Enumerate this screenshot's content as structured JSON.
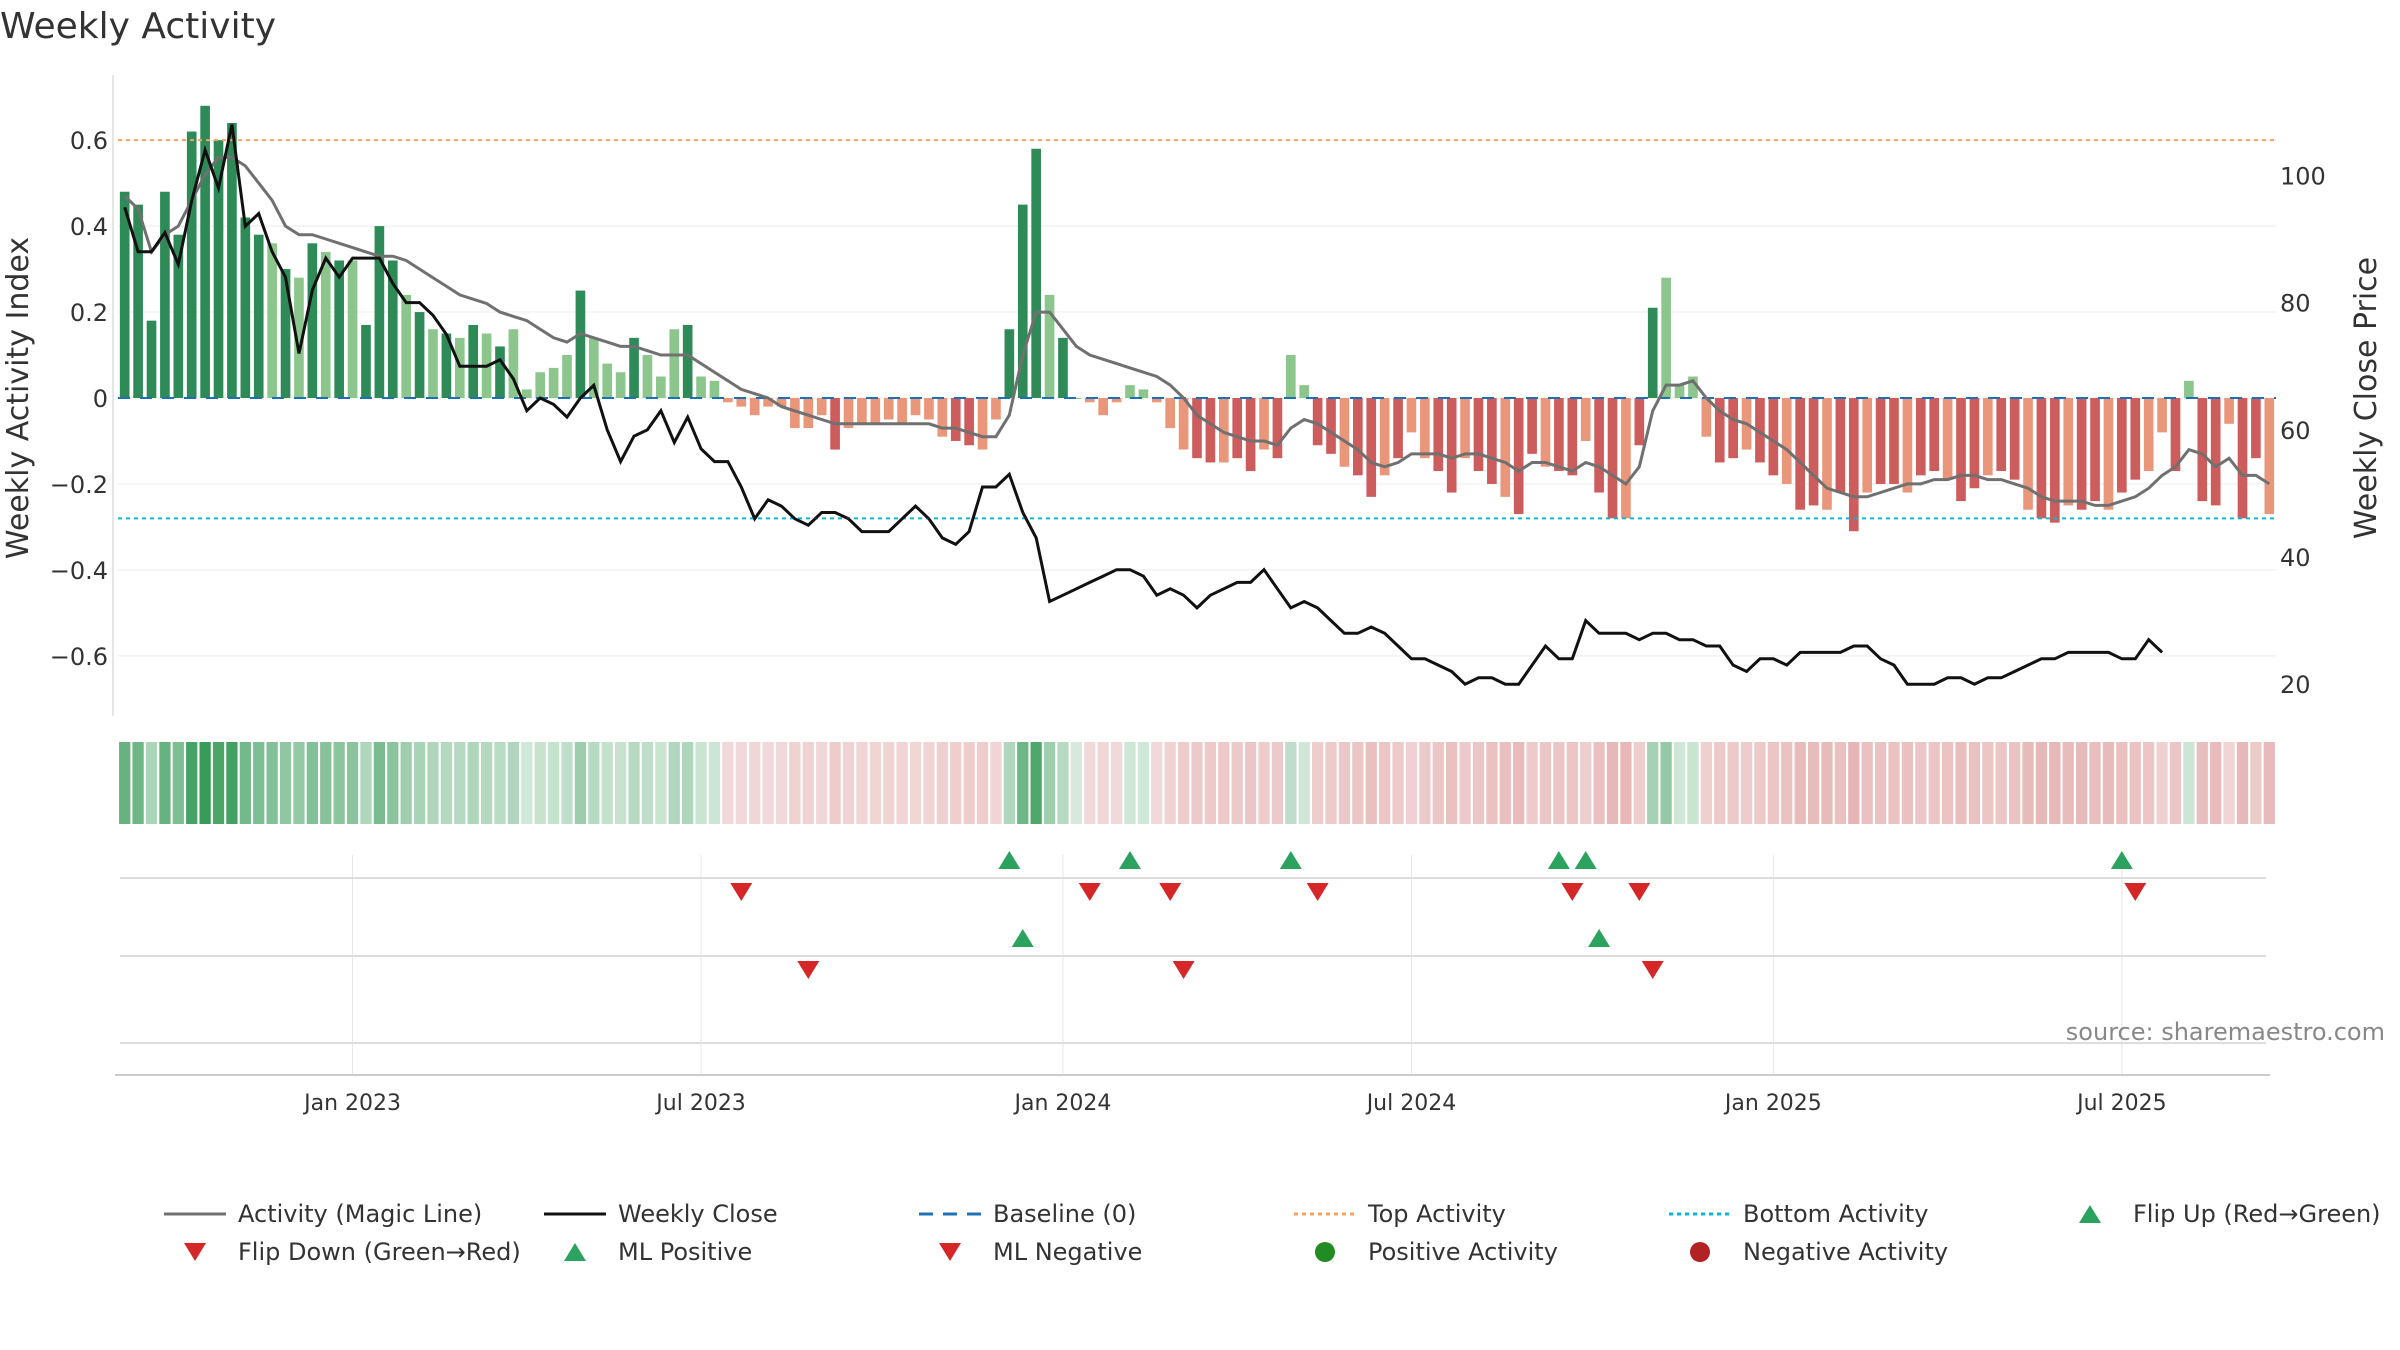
{
  "chart_data": {
    "type": "bar",
    "title": "Weekly Activity",
    "ylabel_left": "Weekly Activity Index",
    "ylabel_right": "Weekly Close Price",
    "ylim_left": [
      -0.74,
      0.74
    ],
    "ylim_right": [
      15,
      115
    ],
    "yticks_left": [
      0.6,
      0.4,
      0.2,
      0,
      -0.2,
      -0.4,
      -0.6
    ],
    "ytick_labels_left": [
      "0.6",
      "0.4",
      "0.2",
      "0",
      "−0.2",
      "−0.4",
      "−0.6"
    ],
    "yticks_right": [
      100,
      80,
      60,
      40,
      20
    ],
    "ytick_labels_right": [
      "100",
      "80",
      "60",
      "40",
      "20"
    ],
    "x_tick_labels": [
      "Jan 2023",
      "Jul 2023",
      "Jan 2024",
      "Jul 2024",
      "Jan 2025",
      "Jul 2025"
    ],
    "x_tick_weeks": [
      17,
      43,
      70,
      96,
      123,
      149
    ],
    "top_activity": 0.6,
    "bottom_activity": -0.28,
    "colors": {
      "pos_strong": "#2e8b57",
      "pos_light": "#8cc68c",
      "neg_strong": "#cd5c5c",
      "neg_light": "#e9967a",
      "magic_line": "#707070",
      "close": "#111111",
      "baseline": "#1f6fb4",
      "top": "#f4a460",
      "bottom": "#00bcd4",
      "flip_up": "#2ca25f",
      "flip_down": "#d62728"
    },
    "weekly_activity": [
      0.48,
      0.45,
      0.18,
      0.48,
      0.38,
      0.62,
      0.68,
      0.6,
      0.64,
      0.42,
      0.38,
      0.36,
      0.3,
      0.28,
      0.36,
      0.34,
      0.32,
      0.32,
      0.17,
      0.4,
      0.32,
      0.24,
      0.2,
      0.16,
      0.15,
      0.14,
      0.17,
      0.15,
      0.12,
      0.16,
      0.02,
      0.06,
      0.07,
      0.1,
      0.25,
      0.14,
      0.08,
      0.06,
      0.14,
      0.1,
      0.05,
      0.16,
      0.17,
      0.05,
      0.04,
      -0.01,
      -0.02,
      -0.04,
      -0.02,
      -0.02,
      -0.07,
      -0.07,
      -0.04,
      -0.12,
      -0.07,
      -0.06,
      -0.06,
      -0.05,
      -0.06,
      -0.04,
      -0.05,
      -0.09,
      -0.1,
      -0.11,
      -0.12,
      -0.05,
      0.16,
      0.45,
      0.58,
      0.24,
      0.14,
      0.0,
      -0.01,
      -0.04,
      -0.01,
      0.03,
      0.02,
      -0.01,
      -0.07,
      -0.12,
      -0.14,
      -0.15,
      -0.15,
      -0.14,
      -0.17,
      -0.12,
      -0.14,
      0.1,
      0.03,
      -0.11,
      -0.13,
      -0.16,
      -0.18,
      -0.23,
      -0.18,
      -0.14,
      -0.08,
      -0.14,
      -0.17,
      -0.22,
      -0.14,
      -0.17,
      -0.2,
      -0.23,
      -0.27,
      -0.13,
      -0.16,
      -0.17,
      -0.18,
      -0.1,
      -0.22,
      -0.28,
      -0.28,
      -0.11,
      0.21,
      0.28,
      0.03,
      0.05,
      -0.09,
      -0.15,
      -0.14,
      -0.12,
      -0.15,
      -0.18,
      -0.2,
      -0.26,
      -0.25,
      -0.26,
      -0.22,
      -0.31,
      -0.22,
      -0.2,
      -0.2,
      -0.22,
      -0.18,
      -0.17,
      -0.19,
      -0.24,
      -0.21,
      -0.18,
      -0.17,
      -0.19,
      -0.26,
      -0.28,
      -0.29,
      -0.25,
      -0.26,
      -0.24,
      -0.26,
      -0.22,
      -0.19,
      -0.17,
      -0.08,
      -0.17,
      0.04,
      -0.24,
      -0.25,
      -0.06,
      -0.28,
      -0.14,
      -0.27
    ],
    "weekly_close": [
      95,
      88,
      88,
      91,
      86,
      96,
      104,
      98,
      108,
      92,
      94,
      88,
      84,
      72,
      82,
      87,
      84,
      87,
      87,
      87,
      83,
      80,
      80,
      78,
      75,
      70,
      70,
      70,
      71,
      68,
      63,
      65,
      64,
      62,
      65,
      67,
      60,
      55,
      59,
      60,
      63,
      58,
      62,
      57,
      55,
      55,
      51,
      46,
      49,
      48,
      46,
      45,
      47,
      47,
      46,
      44,
      44,
      44,
      46,
      48,
      46,
      43,
      42,
      44,
      51,
      51,
      53,
      47,
      43,
      33,
      34,
      35,
      36,
      37,
      38,
      38,
      37,
      34,
      35,
      34,
      32,
      34,
      35,
      36,
      36,
      38,
      35,
      32,
      33,
      32,
      30,
      28,
      28,
      29,
      28,
      26,
      24,
      24,
      23,
      22,
      20,
      21,
      21,
      20,
      20,
      23,
      26,
      24,
      24,
      30,
      28,
      28,
      28,
      27,
      28,
      28,
      27,
      27,
      26,
      26,
      23,
      22,
      24,
      24,
      23,
      25,
      25,
      25,
      25,
      26,
      26,
      24,
      23,
      20,
      20,
      20,
      21,
      21,
      20,
      21,
      21,
      22,
      23,
      24,
      24,
      25,
      25,
      25,
      25,
      24,
      24,
      27,
      25
    ],
    "magic_line": [
      0.47,
      0.44,
      0.34,
      0.38,
      0.4,
      0.46,
      0.52,
      0.56,
      0.56,
      0.54,
      0.5,
      0.46,
      0.4,
      0.38,
      0.38,
      0.37,
      0.36,
      0.35,
      0.34,
      0.33,
      0.33,
      0.32,
      0.3,
      0.28,
      0.26,
      0.24,
      0.23,
      0.22,
      0.2,
      0.19,
      0.18,
      0.16,
      0.14,
      0.13,
      0.15,
      0.14,
      0.13,
      0.12,
      0.12,
      0.11,
      0.1,
      0.1,
      0.1,
      0.08,
      0.06,
      0.04,
      0.02,
      0.01,
      0.0,
      -0.02,
      -0.03,
      -0.04,
      -0.05,
      -0.06,
      -0.06,
      -0.06,
      -0.06,
      -0.06,
      -0.06,
      -0.06,
      -0.06,
      -0.07,
      -0.07,
      -0.08,
      -0.09,
      -0.09,
      -0.04,
      0.1,
      0.2,
      0.2,
      0.16,
      0.12,
      0.1,
      0.09,
      0.08,
      0.07,
      0.06,
      0.05,
      0.03,
      0.0,
      -0.04,
      -0.06,
      -0.08,
      -0.09,
      -0.1,
      -0.1,
      -0.11,
      -0.07,
      -0.05,
      -0.06,
      -0.08,
      -0.1,
      -0.12,
      -0.15,
      -0.16,
      -0.15,
      -0.13,
      -0.13,
      -0.13,
      -0.14,
      -0.13,
      -0.13,
      -0.14,
      -0.15,
      -0.17,
      -0.15,
      -0.15,
      -0.16,
      -0.17,
      -0.15,
      -0.16,
      -0.18,
      -0.2,
      -0.16,
      -0.03,
      0.03,
      0.03,
      0.04,
      0.0,
      -0.03,
      -0.05,
      -0.06,
      -0.08,
      -0.1,
      -0.12,
      -0.15,
      -0.18,
      -0.21,
      -0.22,
      -0.23,
      -0.23,
      -0.22,
      -0.21,
      -0.2,
      -0.2,
      -0.19,
      -0.19,
      -0.18,
      -0.18,
      -0.19,
      -0.19,
      -0.2,
      -0.21,
      -0.23,
      -0.24,
      -0.24,
      -0.24,
      -0.25,
      -0.25,
      -0.24,
      -0.23,
      -0.21,
      -0.18,
      -0.16,
      -0.12,
      -0.13,
      -0.16,
      -0.14,
      -0.18,
      -0.18,
      -0.2
    ],
    "flip_up_weeks": [
      66,
      75,
      87,
      107,
      109,
      149
    ],
    "flip_down_weeks": [
      46,
      72,
      78,
      89,
      108,
      113,
      150
    ],
    "ml_positive_weeks": [
      67,
      110
    ],
    "ml_negative_weeks": [
      51,
      79,
      114
    ],
    "source_text": "source: sharemaestro.com",
    "legend": [
      {
        "key": "magic_line",
        "label": "Activity (Magic Line)"
      },
      {
        "key": "close",
        "label": "Weekly Close"
      },
      {
        "key": "baseline",
        "label": "Baseline (0)"
      },
      {
        "key": "top",
        "label": "Top Activity"
      },
      {
        "key": "bottom",
        "label": "Bottom Activity"
      },
      {
        "key": "flip_up",
        "label": "Flip Up (Red→Green)"
      },
      {
        "key": "flip_down",
        "label": "Flip Down (Green→Red)"
      },
      {
        "key": "ml_pos",
        "label": "ML Positive"
      },
      {
        "key": "ml_neg",
        "label": "ML Negative"
      },
      {
        "key": "pos_act",
        "label": "Positive Activity"
      },
      {
        "key": "neg_act",
        "label": "Negative Activity"
      }
    ]
  }
}
